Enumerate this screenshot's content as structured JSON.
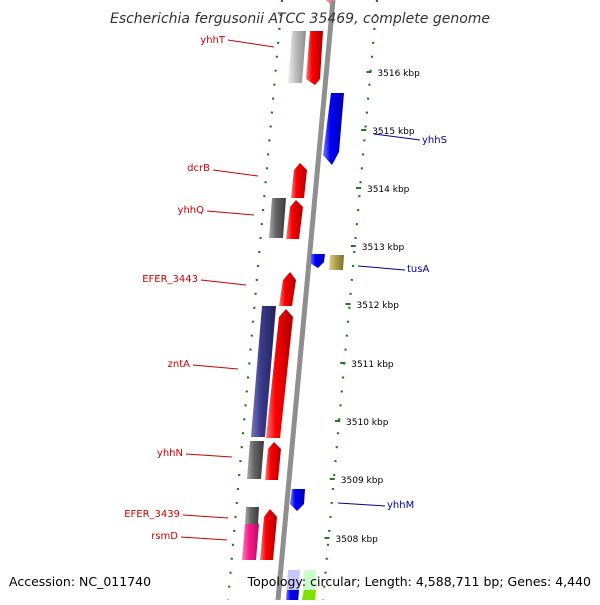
{
  "title": "Escherichia fergusonii ATCC 35469, complete genome",
  "footer": {
    "accession": "Accession: NC_011740",
    "summary": "Topology: circular; Length: 4,588,711 bp; Genes: 4,440"
  },
  "colors": {
    "forward_label": "#cc0000",
    "reverse_label": "#000099",
    "forward_cds": "#ff0000",
    "reverse_cds": "#0000ff",
    "gene_grey": "#666666",
    "light_grey": "#c0c0c0",
    "zntA_box": "#3b3b8c",
    "rsmD_box": "#ff1a8c",
    "tusA_box": "#b3a64d",
    "tick_green": "#1f7a1f"
  },
  "kbp_ticks": [
    {
      "label": "3516 kbp"
    },
    {
      "label": "3515 kbp"
    },
    {
      "label": "3514 kbp"
    },
    {
      "label": "3513 kbp"
    },
    {
      "label": "3512 kbp"
    },
    {
      "label": "3511 kbp"
    },
    {
      "label": "3510 kbp"
    },
    {
      "label": "3509 kbp"
    },
    {
      "label": "3508 kbp"
    }
  ],
  "gene_labels": [
    {
      "name": "yhhT",
      "strand": "forward"
    },
    {
      "name": "yhhS",
      "strand": "reverse"
    },
    {
      "name": "dcrB",
      "strand": "forward"
    },
    {
      "name": "yhhQ",
      "strand": "forward"
    },
    {
      "name": "tusA",
      "strand": "reverse"
    },
    {
      "name": "EFER_3443",
      "strand": "forward"
    },
    {
      "name": "zntA",
      "strand": "forward"
    },
    {
      "name": "yhhN",
      "strand": "forward"
    },
    {
      "name": "yhhM",
      "strand": "reverse"
    },
    {
      "name": "EFER_3439",
      "strand": "forward"
    },
    {
      "name": "rsmD",
      "strand": "forward"
    }
  ]
}
